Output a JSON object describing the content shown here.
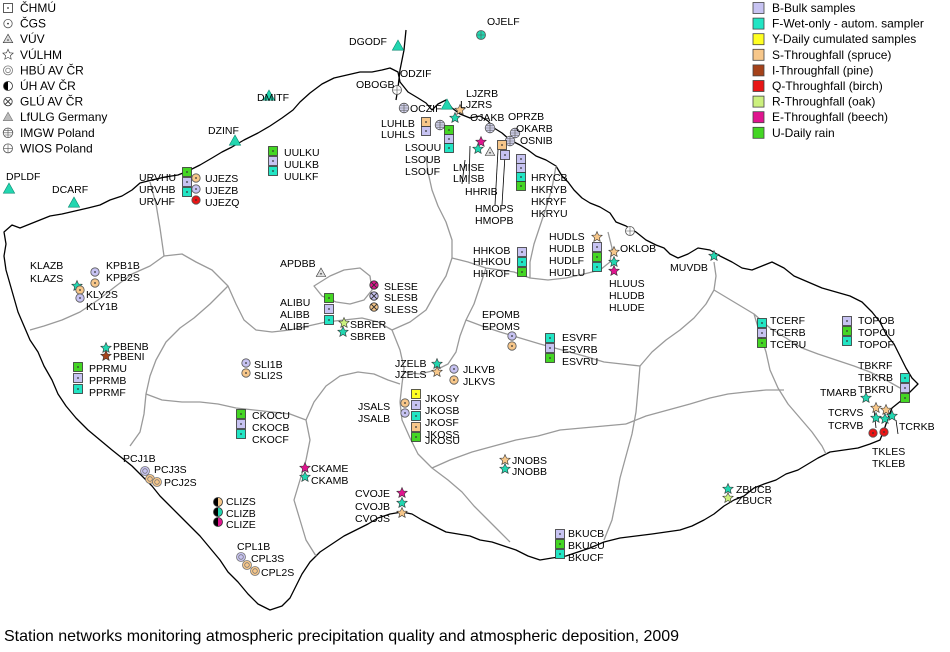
{
  "caption": "Station networks monitoring atmospheric precipitation quality and atmospheric deposition, 2009",
  "network_legend": [
    {
      "label": "ČHMÚ",
      "icon": "square-dot-icon"
    },
    {
      "label": "ČGS",
      "icon": "circle-dot-icon"
    },
    {
      "label": "VÚV",
      "icon": "triangle-dot-icon"
    },
    {
      "label": "VÚLHM",
      "icon": "star-icon"
    },
    {
      "label": "HBÚ AV ČR",
      "icon": "double-circle-icon"
    },
    {
      "label": "ÚH AV ČR",
      "icon": "half-circle-icon"
    },
    {
      "label": "GLÚ AV ČR",
      "icon": "circle-x-icon"
    },
    {
      "label": "LfULG Germany",
      "icon": "triangle-icon"
    },
    {
      "label": "IMGW Poland",
      "icon": "circle-grid-icon"
    },
    {
      "label": "WIOS Poland",
      "icon": "circle-cross-icon"
    }
  ],
  "sample_legend": [
    {
      "label": "B-Bulk samples",
      "color": "#c7c3f2"
    },
    {
      "label": "F-Wet-only - autom. sampler",
      "color": "#22e5c4"
    },
    {
      "label": "Y-Daily cumulated samples",
      "color": "#ffff22"
    },
    {
      "label": "S-Throughfall (spruce)",
      "color": "#f7c78a"
    },
    {
      "label": "I-Throughfall (pine)",
      "color": "#a5421a"
    },
    {
      "label": "Q-Throughfall (birch)",
      "color": "#e81515"
    },
    {
      "label": "R-Throughfall (oak)",
      "color": "#ccf07e"
    },
    {
      "label": "E-Throughfall (beech)",
      "color": "#e0148f"
    },
    {
      "label": "U-Daily rain",
      "color": "#44d624"
    }
  ],
  "station_labels": [
    "DGODF",
    "OJELF",
    "ODZIF",
    "OBOGB",
    "DMITF",
    "DZINF",
    "DPLDF",
    "DCARF",
    "LJZRB",
    "LJZRS",
    "OCZIF",
    "OJAKB",
    "OPRZB",
    "OKARB",
    "OSNIB",
    "LUHLB",
    "LUHLS",
    "LSOUU",
    "LSOUB",
    "LSOUF",
    "LMISE",
    "LMISB",
    "HHRIB",
    "HMOPS",
    "HMOPB",
    "HRYCB",
    "HKRYB",
    "HKRYF",
    "HKRYU",
    "OKLOB",
    "UULKU",
    "UULKB",
    "UULKF",
    "URVHU",
    "URVHB",
    "URVHF",
    "UJEZS",
    "UJEZB",
    "UJEZQ",
    "KLAZB",
    "KLAZS",
    "KPB1B",
    "KPB2S",
    "KLY2S",
    "KLY1B",
    "APDBB",
    "SLESE",
    "SLESB",
    "SLESS",
    "ALIBU",
    "ALIBB",
    "ALIBF",
    "SBRER",
    "SBREB",
    "HHKOB",
    "HHKOU",
    "HHKOF",
    "HUDLS",
    "HUDLB",
    "HUDLF",
    "HUDLU",
    "HLUUS",
    "HLUDB",
    "HLUDE",
    "MUVDB",
    "EPOMB",
    "EPOMS",
    "ESVRF",
    "ESVRB",
    "ESVRU",
    "TCERF",
    "TCERB",
    "TCERU",
    "TOPOB",
    "TOPOU",
    "TOPOF",
    "PBENB",
    "PBENI",
    "PPRMU",
    "PPRMB",
    "PPRMF",
    "SLI1B",
    "SLI2S",
    "JZELB",
    "JZELS",
    "JLKVB",
    "JLKVS",
    "JSALS",
    "JSALB",
    "JKOSY",
    "JKOSB",
    "JKOSF",
    "JKOSS",
    "JKOSU",
    "TBKRF",
    "TBKRB",
    "TBKRU",
    "TMARB",
    "TCRVS",
    "TCRVB",
    "TCRKB",
    "TKLES",
    "TKLEB",
    "CKOCU",
    "CKOCB",
    "CKOCF",
    "PCJ1B",
    "PCJ3S",
    "PCJ2S",
    "CKAME",
    "CKAMB",
    "JNOBS",
    "JNOBB",
    "ZBUCB",
    "ZBUCR",
    "CVOJE",
    "CVOJB",
    "CVOJS",
    "CLIZS",
    "CLIZB",
    "CLIZE",
    "BKUCB",
    "BKUCU",
    "BKUCF",
    "CPL1B",
    "CPL3S",
    "CPL2S"
  ]
}
